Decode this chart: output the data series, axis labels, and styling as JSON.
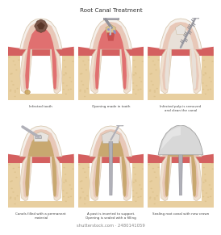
{
  "title": "Root Canal Treatment",
  "background": "#ffffff",
  "watermark": "shutterstock.com · 2480141059",
  "captions": [
    "Infected tooth",
    "Opening made in tooth",
    "Infected pulp is removed\nand clean the canal",
    "Canals filled with a permanent\nmaterial",
    "A post is inserted to support.\nOpening is sealed with a filling",
    "Sealing root canal with new crown"
  ],
  "bone_color": "#e8cfa0",
  "bone_edge": "#c8a870",
  "gum_color": "#d46060",
  "gum_dark": "#b84040",
  "dentin_outer": "#f0e0d0",
  "dentin_inner": "#e8c8b8",
  "pulp_pink": "#e07070",
  "pulp_dark": "#c85050",
  "canal_fill": "#c8a870",
  "enamel_white": "#f5f0eb",
  "enamel_edge": "#d8c8b0",
  "infection_dark": "#7a5548",
  "infection_mid": "#9c6b5a",
  "crown_gray": "#d8d8d8",
  "crown_light": "#eeeeee",
  "metal_gray": "#b0b0b8",
  "metal_dark": "#888890"
}
